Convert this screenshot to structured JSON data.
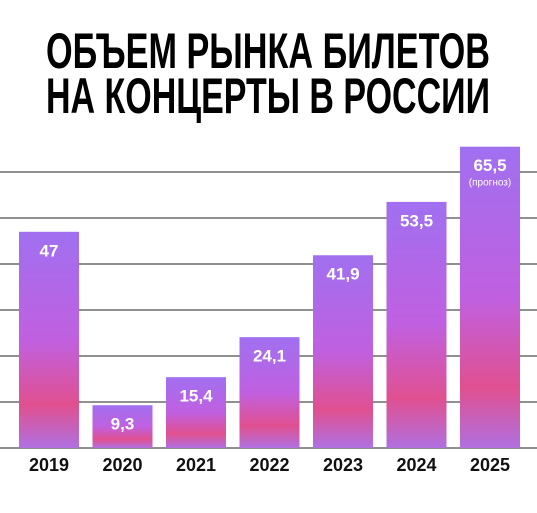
{
  "chart_data": {
    "type": "bar",
    "title": [
      "ОБЪЕМ РЫНКА БИЛЕТОВ",
      "НА КОНЦЕРТЫ В РОССИИ"
    ],
    "categories": [
      "2019",
      "2020",
      "2021",
      "2022",
      "2023",
      "2024",
      "2025"
    ],
    "values": [
      47,
      9.3,
      15.4,
      24.1,
      41.9,
      53.5,
      65.5
    ],
    "value_labels": [
      "47",
      "9,3",
      "15,4",
      "24,1",
      "41,9",
      "53,5",
      "65,5"
    ],
    "annotations": [
      null,
      null,
      null,
      null,
      null,
      null,
      "(прогноз)"
    ],
    "ylim": [
      0,
      70
    ],
    "yticks": [
      0,
      10,
      20,
      30,
      40,
      50,
      60
    ],
    "grid": true
  }
}
